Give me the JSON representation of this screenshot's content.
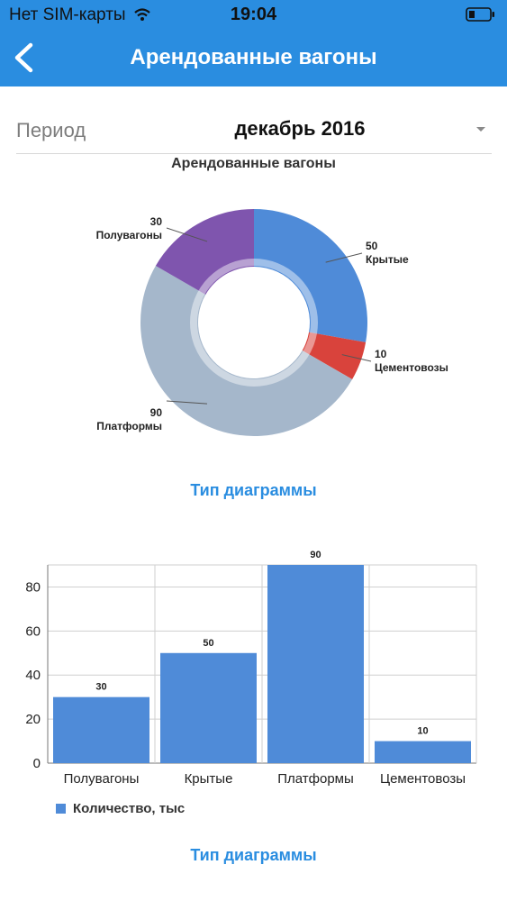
{
  "status_bar": {
    "carrier": "Нет SIM-карты",
    "time": "19:04"
  },
  "nav": {
    "title": "Арендованные вагоны",
    "back_icon": "chevron-left-icon"
  },
  "period": {
    "label": "Период",
    "value": "декабрь 2016",
    "dropdown_icon": "caret-down-icon"
  },
  "chart_type_label": "Тип диаграммы",
  "colors": {
    "header": "#2a8de0",
    "link": "#2a8de0",
    "bar": "#4f8bd8"
  },
  "chart_data": [
    {
      "type": "pie",
      "title": "Арендованные вагоны",
      "categories": [
        "Крытые",
        "Цементовозы",
        "Платформы",
        "Полувагоны"
      ],
      "values": [
        50,
        10,
        90,
        30
      ],
      "colors": [
        "#4f8bd8",
        "#d9433c",
        "#a5b7cb",
        "#7f55ae"
      ]
    },
    {
      "type": "bar",
      "title": "",
      "categories": [
        "Полувагоны",
        "Крытые",
        "Платформы",
        "Цементовозы"
      ],
      "series": [
        {
          "name": "Количество, тыс",
          "values": [
            30,
            50,
            90,
            10
          ]
        }
      ],
      "yticks": [
        0,
        20,
        40,
        60,
        80
      ],
      "ylim": [
        0,
        90
      ],
      "grid": true,
      "legend": "bottom-left"
    }
  ]
}
